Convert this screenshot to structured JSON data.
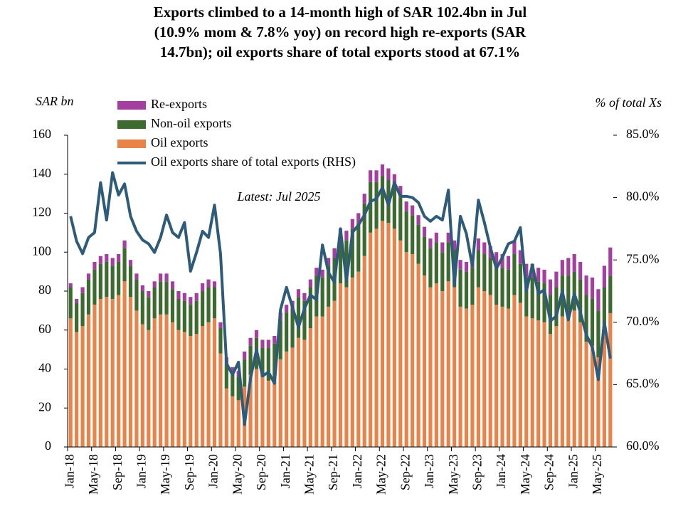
{
  "chart_data": {
    "type": "bar",
    "stacked": true,
    "title": [
      "Exports climbed to a 14-month high of SAR 102.4bn in Jul",
      "(10.9% mom & 7.8% yoy) on record high re-exports (SAR",
      "14.7bn); oil exports share of total exports stood at 67.1%"
    ],
    "ylabel": "SAR bn",
    "y2label": "% of total Xs",
    "annotation": "Latest: Jul 2025",
    "legend": "upper left",
    "categories": [
      "Jan-18",
      null,
      null,
      null,
      "May-18",
      null,
      null,
      null,
      "Sep-18",
      null,
      null,
      null,
      "Jan-19",
      null,
      null,
      null,
      "May-19",
      null,
      null,
      null,
      "Sep-19",
      null,
      null,
      null,
      "Jan-20",
      null,
      null,
      null,
      "May-20",
      null,
      null,
      null,
      "Sep-20",
      null,
      null,
      null,
      "Jan-21",
      null,
      null,
      null,
      "May-21",
      null,
      null,
      null,
      "Sep-21",
      null,
      null,
      null,
      "Jan-22",
      null,
      null,
      null,
      "May-22",
      null,
      null,
      null,
      "Sep-22",
      null,
      null,
      null,
      "Jan-23",
      null,
      null,
      null,
      "May-23",
      null,
      null,
      null,
      "Sep-23",
      null,
      null,
      null,
      "Jan-24",
      null,
      null,
      null,
      "May-24",
      null,
      null,
      null,
      "Sep-24",
      null,
      null,
      null,
      "Jan-25",
      null,
      null,
      null,
      "May-25",
      null,
      null
    ],
    "series": [
      {
        "name": "Oil exports",
        "color": "#e8834a",
        "values": [
          66,
          59,
          62,
          68,
          73,
          76,
          77,
          76,
          78,
          85,
          77,
          70,
          63,
          60,
          66,
          68,
          68,
          64,
          60,
          59,
          57,
          58,
          62,
          64,
          66,
          48,
          30,
          26,
          24,
          31,
          37,
          40,
          36,
          34,
          35,
          45,
          49,
          51,
          56,
          55,
          61,
          67,
          67,
          72,
          75,
          84,
          82,
          87,
          90,
          98,
          110,
          112,
          116,
          115,
          112,
          106,
          100,
          99,
          94,
          88,
          82,
          84,
          80,
          85,
          82,
          72,
          71,
          73,
          82,
          80,
          78,
          73,
          72,
          71,
          78,
          74,
          67,
          66,
          65,
          64,
          58,
          62,
          67,
          68,
          70,
          64,
          54,
          52,
          46,
          60,
          68.7
        ]
      },
      {
        "name": "Non-oil exports",
        "color": "#3d6b2f",
        "values": [
          16,
          15,
          17,
          18,
          18,
          18,
          18,
          17,
          17,
          17,
          16,
          16,
          17,
          17,
          16,
          17,
          17,
          17,
          16,
          16,
          16,
          17,
          18,
          18,
          16,
          13,
          13,
          12,
          12,
          14,
          15,
          16,
          15,
          17,
          18,
          20,
          20,
          20,
          21,
          20,
          21,
          21,
          20,
          21,
          22,
          23,
          24,
          25,
          25,
          27,
          26,
          24,
          23,
          22,
          22,
          22,
          21,
          20,
          20,
          20,
          20,
          21,
          20,
          20,
          19,
          19,
          19,
          19,
          19,
          19,
          19,
          20,
          20,
          20,
          21,
          20,
          20,
          21,
          20,
          20,
          20,
          20,
          21,
          20,
          20,
          22,
          24,
          24,
          24,
          22,
          19
        ]
      },
      {
        "name": "Re-exports",
        "color": "#a3409f",
        "values": [
          2,
          2,
          3,
          3,
          4,
          4,
          4,
          4,
          4,
          4,
          3,
          3,
          3,
          3,
          3,
          4,
          4,
          4,
          4,
          4,
          4,
          4,
          4,
          4,
          3,
          3,
          3,
          3,
          3,
          4,
          4,
          4,
          4,
          4,
          4,
          4,
          4,
          4,
          4,
          4,
          4,
          4,
          4,
          4,
          5,
          5,
          5,
          5,
          5,
          5,
          6,
          6,
          6,
          6,
          6,
          6,
          5,
          5,
          5,
          5,
          5,
          5,
          5,
          5,
          5,
          5,
          5,
          6,
          6,
          6,
          6,
          7,
          7,
          7,
          7,
          7,
          7,
          7,
          7,
          7,
          8,
          8,
          8,
          9,
          9,
          9,
          10,
          11,
          11,
          11,
          14.7
        ]
      },
      {
        "name": "Oil exports share of total exports (RHS)",
        "type": "line",
        "axis": "y2",
        "color": "#2e5b7a",
        "values": [
          78.5,
          76.5,
          75.5,
          76.8,
          77.2,
          81.2,
          78.2,
          82,
          80.2,
          81.1,
          78.5,
          77.3,
          76.6,
          76.3,
          75.6,
          76.8,
          78.6,
          77.2,
          76.8,
          78.0,
          74.1,
          75.6,
          77.3,
          76.8,
          79.4,
          75.5,
          66.7,
          65.8,
          66.8,
          61.8,
          65.5,
          67.8,
          65.7,
          66.0,
          65.1,
          71.0,
          72.8,
          71.2,
          69.6,
          71.1,
          72.2,
          71.8,
          76.2,
          74.0,
          73.2,
          77.5,
          73.3,
          77.2,
          77.8,
          78.6,
          79.7,
          79.9,
          80.8,
          79.4,
          81.2,
          80.1,
          80.1,
          80.0,
          79.6,
          78.5,
          78.1,
          78.5,
          78.2,
          80.6,
          73.0,
          78.5,
          77.1,
          74.5,
          79.8,
          78.0,
          76.0,
          74.3,
          75.2,
          76.3,
          76.5,
          77.6,
          72.5,
          74.6,
          72.3,
          72.6,
          70.1,
          70.5,
          72.5,
          70.2,
          72.3,
          70.8,
          69.0,
          68.0,
          65.4,
          70.0,
          67.1
        ]
      }
    ],
    "ylim": [
      0,
      160
    ],
    "yticks": [
      0,
      20,
      40,
      60,
      80,
      100,
      120,
      140,
      160
    ],
    "y2lim": [
      60,
      85
    ],
    "y2ticks": [
      {
        "value": 60,
        "label": "60.0%"
      },
      {
        "value": 65,
        "label": "65.0%"
      },
      {
        "value": 70,
        "label": "70.0%"
      },
      {
        "value": 75,
        "label": "75.0%"
      },
      {
        "value": 80,
        "label": "80.0%"
      },
      {
        "value": 85,
        "label": "85.0%"
      }
    ]
  }
}
